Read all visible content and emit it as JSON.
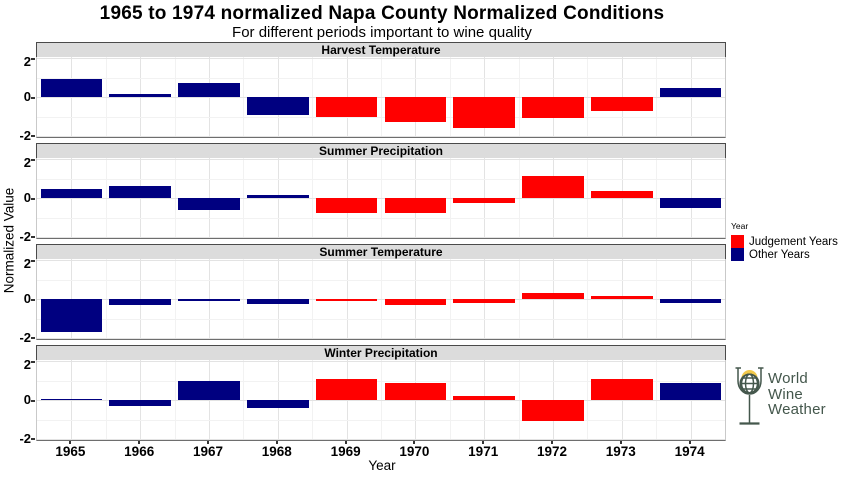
{
  "chart_data": {
    "type": "bar",
    "title": "1965 to 1974 normalized Napa County Normalized Conditions",
    "subtitle": "For different periods important to wine quality",
    "xlabel": "Year",
    "ylabel": "Normalized Value",
    "x": [
      1965,
      1966,
      1967,
      1968,
      1969,
      1970,
      1971,
      1972,
      1973,
      1974
    ],
    "yticks": [
      2,
      0,
      -2
    ],
    "ylim": [
      -2.05,
      2.05
    ],
    "grid": true,
    "judgement_years": [
      1969,
      1970,
      1971,
      1972,
      1973
    ],
    "colors": {
      "judgement": "#FF0000",
      "other": "#000080",
      "strip_bg": "#DCDCDC",
      "grid_major": "#E3E3E3",
      "grid_minor": "#F2F2F2"
    },
    "facets": [
      {
        "label": "Harvest Temperature",
        "values": [
          0.9,
          0.15,
          0.7,
          -0.9,
          -1.0,
          -1.3,
          -1.6,
          -1.1,
          -0.7,
          0.45
        ]
      },
      {
        "label": "Summer Precipitation",
        "values": [
          0.45,
          0.6,
          -0.6,
          0.15,
          -0.75,
          -0.75,
          -0.25,
          1.15,
          0.35,
          -0.5
        ]
      },
      {
        "label": "Summer Temperature",
        "values": [
          -1.7,
          -0.3,
          -0.05,
          -0.27,
          -0.05,
          -0.3,
          -0.22,
          0.3,
          0.15,
          -0.2
        ]
      },
      {
        "label": "Winter Precipitation",
        "values": [
          0.05,
          -0.3,
          1.0,
          -0.4,
          1.1,
          0.85,
          0.2,
          -1.1,
          1.1,
          0.85
        ]
      }
    ],
    "legend": {
      "title": "Year",
      "position": "right",
      "items": [
        {
          "label": "Judgement Years",
          "color": "#FF0000"
        },
        {
          "label": "Other Years",
          "color": "#000080"
        }
      ]
    }
  },
  "logo": {
    "lines": [
      "World",
      "Wine",
      "Weather"
    ],
    "text_color": "#44574C",
    "sun_color": "#F2C94C"
  }
}
